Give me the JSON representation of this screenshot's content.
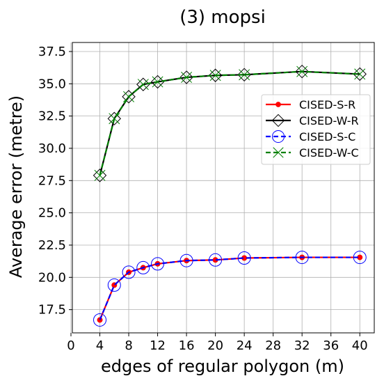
{
  "chart_data": {
    "type": "line",
    "title": "(3) mopsi",
    "xlabel": "edges of regular polygon (m)",
    "ylabel": "Average error (metre)",
    "xlim": [
      0,
      42
    ],
    "ylim": [
      15.7,
      38.2
    ],
    "xticks": [
      0,
      4,
      8,
      12,
      16,
      20,
      24,
      28,
      32,
      36,
      40
    ],
    "yticks": [
      17.5,
      20.0,
      22.5,
      25.0,
      27.5,
      30.0,
      32.5,
      35.0,
      37.5
    ],
    "ytick_labels": [
      "17.5",
      "20.0",
      "22.5",
      "25.0",
      "27.5",
      "30.0",
      "32.5",
      "35.0",
      "37.5"
    ],
    "grid": true,
    "legend_position": "center-right",
    "x": [
      4,
      6,
      8,
      10,
      12,
      16,
      20,
      24,
      32,
      40
    ],
    "series": [
      {
        "name": "CISED-S-R",
        "color": "#ff0000",
        "line": "solid",
        "marker": "dot",
        "values": [
          16.7,
          19.4,
          20.4,
          20.75,
          21.05,
          21.3,
          21.35,
          21.5,
          21.55,
          21.55
        ]
      },
      {
        "name": "CISED-W-R",
        "color": "#000000",
        "line": "solid",
        "marker": "diamond",
        "values": [
          27.9,
          32.3,
          34.0,
          34.95,
          35.15,
          35.5,
          35.65,
          35.7,
          35.95,
          35.75
        ]
      },
      {
        "name": "CISED-S-C",
        "color": "#0000ff",
        "line": "dashed",
        "marker": "open-circle",
        "values": [
          16.7,
          19.4,
          20.4,
          20.75,
          21.05,
          21.3,
          21.35,
          21.5,
          21.55,
          21.55
        ]
      },
      {
        "name": "CISED-W-C",
        "color": "#008000",
        "line": "dashed",
        "marker": "x",
        "values": [
          27.9,
          32.3,
          34.0,
          34.95,
          35.15,
          35.5,
          35.65,
          35.7,
          35.95,
          35.75
        ]
      }
    ]
  }
}
